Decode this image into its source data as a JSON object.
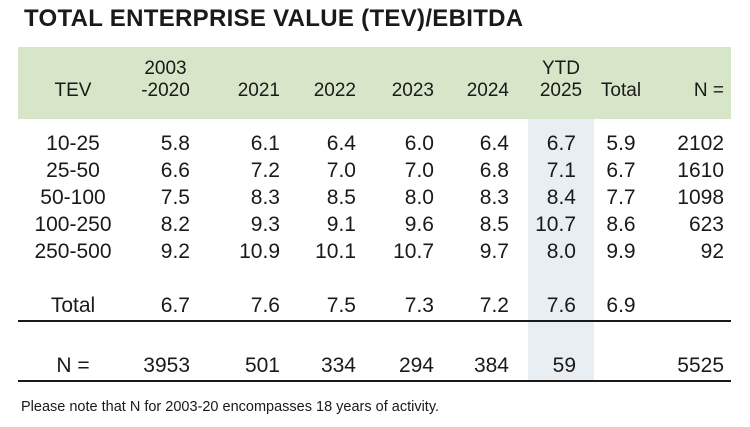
{
  "title": "TOTAL ENTERPRISE VALUE (TEV)/EBITDA",
  "columns": {
    "tev": "TEV",
    "c2003_l1": "2003",
    "c2003_l2": "-2020",
    "c2021": "2021",
    "c2022": "2022",
    "c2023": "2023",
    "c2024": "2024",
    "ytd_l1": "YTD",
    "ytd_l2": "2025",
    "total": "Total",
    "n": "N ="
  },
  "rows": [
    {
      "tev": "10-25",
      "v2003": "5.8",
      "v2021": "6.1",
      "v2022": "6.4",
      "v2023": "6.0",
      "v2024": "6.4",
      "ytd": "6.7",
      "total": "5.9",
      "n": "2102"
    },
    {
      "tev": "25-50",
      "v2003": "6.6",
      "v2021": "7.2",
      "v2022": "7.0",
      "v2023": "7.0",
      "v2024": "6.8",
      "ytd": "7.1",
      "total": "6.7",
      "n": "1610"
    },
    {
      "tev": "50-100",
      "v2003": "7.5",
      "v2021": "8.3",
      "v2022": "8.5",
      "v2023": "8.0",
      "v2024": "8.3",
      "ytd": "8.4",
      "total": "7.7",
      "n": "1098"
    },
    {
      "tev": "100-250",
      "v2003": "8.2",
      "v2021": "9.3",
      "v2022": "9.1",
      "v2023": "9.6",
      "v2024": "8.5",
      "ytd": "10.7",
      "total": "8.6",
      "n": "623"
    },
    {
      "tev": "250-500",
      "v2003": "9.2",
      "v2021": "10.9",
      "v2022": "10.1",
      "v2023": "10.7",
      "v2024": "9.7",
      "ytd": "8.0",
      "total": "9.9",
      "n": "92"
    }
  ],
  "total_row": {
    "label": "Total",
    "v2003": "6.7",
    "v2021": "7.6",
    "v2022": "7.5",
    "v2023": "7.3",
    "v2024": "7.2",
    "ytd": "7.6",
    "total": "6.9"
  },
  "n_row": {
    "label": "N =",
    "v2003": "3953",
    "v2021": "501",
    "v2022": "334",
    "v2023": "294",
    "v2024": "384",
    "ytd": "59",
    "n": "5525"
  },
  "note": "Please note that N for 2003-20 encompasses 18 years of activity."
}
